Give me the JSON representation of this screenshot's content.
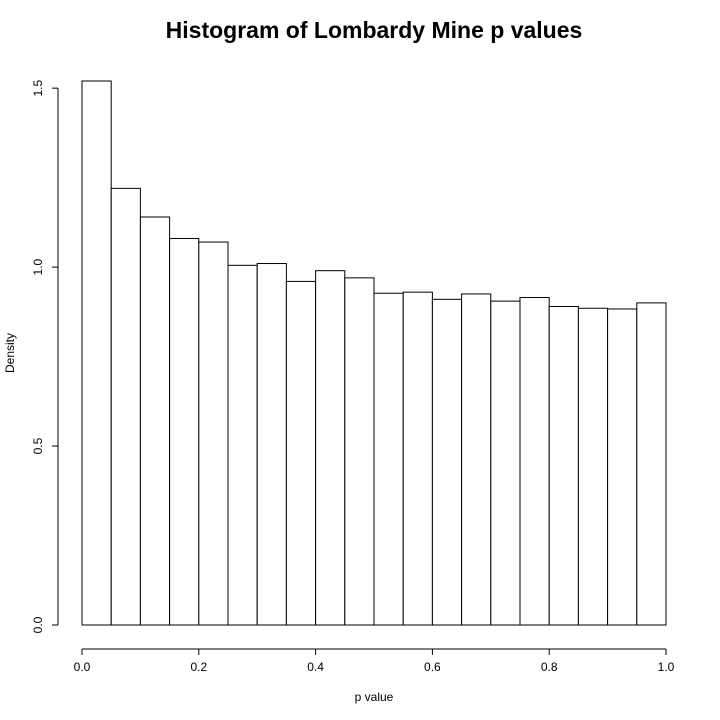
{
  "chart_data": {
    "type": "bar",
    "title": "Histogram of Lombardy Mine p values",
    "xlabel": "p value",
    "ylabel": "Density",
    "xlim": [
      0.0,
      1.0
    ],
    "ylim": [
      0.0,
      1.52
    ],
    "x_ticks": [
      0.0,
      0.2,
      0.4,
      0.6,
      0.8,
      1.0
    ],
    "x_tick_labels": [
      "0.0",
      "0.2",
      "0.4",
      "0.6",
      "0.8",
      "1.0"
    ],
    "y_ticks": [
      0.0,
      0.5,
      1.0,
      1.5
    ],
    "y_tick_labels": [
      "0.0",
      "0.5",
      "1.0",
      "1.5"
    ],
    "bin_edges": [
      0.0,
      0.05,
      0.1,
      0.15,
      0.2,
      0.25,
      0.3,
      0.35,
      0.4,
      0.45,
      0.5,
      0.55,
      0.6,
      0.65,
      0.7,
      0.75,
      0.8,
      0.85,
      0.9,
      0.95,
      1.0
    ],
    "values": [
      1.52,
      1.22,
      1.14,
      1.08,
      1.07,
      1.005,
      1.01,
      0.96,
      0.99,
      0.97,
      0.927,
      0.93,
      0.91,
      0.925,
      0.905,
      0.915,
      0.89,
      0.885,
      0.883,
      0.9
    ],
    "grid": false,
    "legend": "none",
    "bar_fill": "#ffffff",
    "bar_stroke": "#000000"
  }
}
